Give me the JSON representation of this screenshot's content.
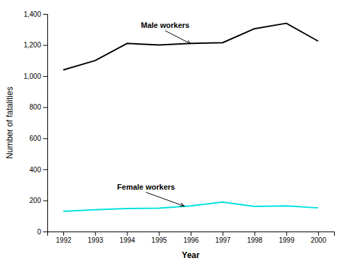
{
  "chart_data": {
    "type": "line",
    "x": [
      1992,
      1993,
      1994,
      1995,
      1996,
      1997,
      1998,
      1999,
      2000
    ],
    "series": [
      {
        "color": "#000000",
        "values": [
          1040,
          1100,
          1210,
          1200,
          1210,
          1215,
          1305,
          1340,
          1225
        ]
      },
      {
        "color": "#00e0e0",
        "values": [
          130,
          140,
          148,
          150,
          165,
          190,
          162,
          165,
          152
        ]
      }
    ],
    "xlabel": "Year",
    "ylabel": "Number of fatalities",
    "xlim": [
      1991.5,
      2000.5
    ],
    "xticks": [
      1992,
      1993,
      1994,
      1995,
      1996,
      1997,
      1998,
      1999,
      2000
    ],
    "ylim": [
      0,
      1400
    ],
    "yticks": [
      0,
      200,
      400,
      600,
      800,
      {
        "value": 1000,
        "label": "1,000"
      },
      {
        "value": 1200,
        "label": "1,200"
      },
      {
        "value": 1400,
        "label": "1,400"
      }
    ],
    "grid": false,
    "annotations": [
      {
        "text": "Male workers",
        "xy": [
          1996.0,
          1208
        ],
        "xytext": [
          1995.2,
          1310
        ]
      },
      {
        "text": "Female workers",
        "xy": [
          1995.8,
          163
        ],
        "xytext": [
          1994.6,
          270
        ]
      }
    ]
  }
}
